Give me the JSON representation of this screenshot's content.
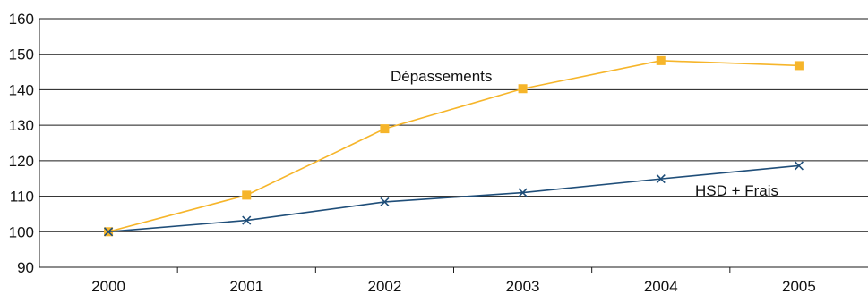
{
  "chart_data": {
    "type": "line",
    "x": [
      "2000",
      "2001",
      "2002",
      "2003",
      "2004",
      "2005"
    ],
    "ylim": [
      90,
      160
    ],
    "yticks": [
      90,
      100,
      110,
      120,
      130,
      140,
      150,
      160
    ],
    "grid": "horizontal",
    "series": [
      {
        "name": "Dépassements",
        "color": "#f6b52a",
        "marker": "square",
        "values": [
          100,
          110.3,
          129,
          140.3,
          148.2,
          146.8
        ]
      },
      {
        "name": "HSD + Frais",
        "color": "#1f4e79",
        "marker": "x",
        "values": [
          100,
          103.2,
          108.4,
          111,
          114.9,
          118.6
        ]
      }
    ]
  }
}
